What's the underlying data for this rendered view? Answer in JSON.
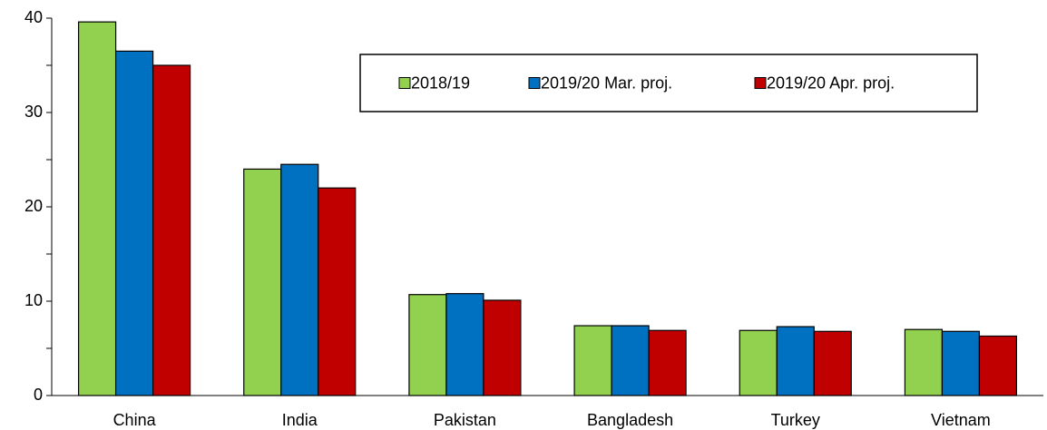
{
  "chart_data": {
    "type": "bar",
    "categories": [
      "China",
      "India",
      "Pakistan",
      "Bangladesh",
      "Turkey",
      "Vietnam"
    ],
    "series": [
      {
        "name": "2018/19",
        "color": "#92d050",
        "values": [
          39.6,
          24.0,
          10.7,
          7.4,
          6.9,
          7.0
        ]
      },
      {
        "name": "2019/20 Mar. proj.",
        "color": "#0070c0",
        "values": [
          36.5,
          24.5,
          10.8,
          7.4,
          7.3,
          6.8
        ]
      },
      {
        "name": "2019/20 Apr. proj.",
        "color": "#c00000",
        "values": [
          35.0,
          22.0,
          10.1,
          6.9,
          6.8,
          6.3
        ]
      }
    ],
    "ylim": [
      0,
      40
    ],
    "yticks": [
      0,
      10,
      20,
      30,
      40
    ],
    "yticks_minor": [
      5,
      15,
      25,
      35
    ],
    "grid": false,
    "legend": "upper right"
  }
}
